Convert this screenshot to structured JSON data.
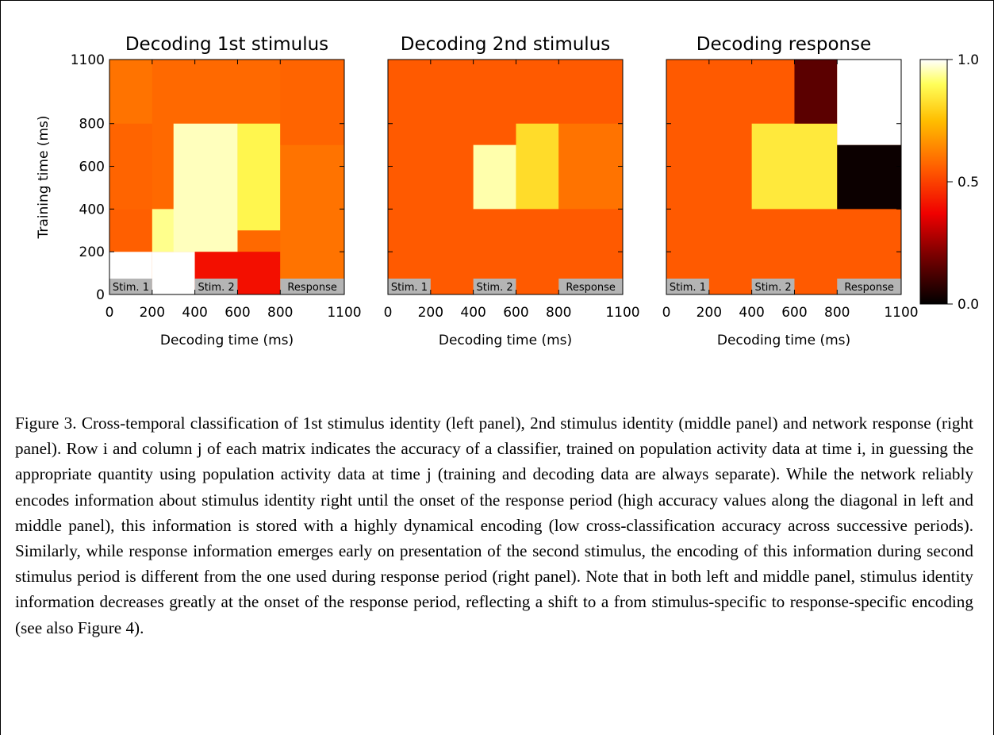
{
  "chart_data": [
    {
      "type": "heatmap",
      "title": "Decoding 1st stimulus",
      "xlabel": "Decoding time (ms)",
      "ylabel": "Training time (ms)",
      "xlim": [
        0,
        1100
      ],
      "ylim": [
        0,
        1100
      ],
      "xticks": [
        "0",
        "200",
        "400",
        "600",
        "800",
        "1100"
      ],
      "yticks": [
        "0",
        "200",
        "400",
        "600",
        "800",
        "1100"
      ],
      "periods": [
        "Stim. 1",
        "Stim. 2",
        "Response"
      ],
      "color_scale": "hot",
      "blocks": [
        {
          "x": [
            0,
            1100
          ],
          "y": [
            0,
            1100
          ],
          "value": 0.58
        },
        {
          "x": [
            0,
            200
          ],
          "y": [
            0,
            200
          ],
          "value": 1.0
        },
        {
          "x": [
            0,
            200
          ],
          "y": [
            200,
            400
          ],
          "value": 0.56
        },
        {
          "x": [
            0,
            200
          ],
          "y": [
            400,
            800
          ],
          "value": 0.57
        },
        {
          "x": [
            0,
            200
          ],
          "y": [
            800,
            1100
          ],
          "value": 0.6
        },
        {
          "x": [
            200,
            400
          ],
          "y": [
            0,
            200
          ],
          "value": 1.0
        },
        {
          "x": [
            200,
            400
          ],
          "y": [
            200,
            400
          ],
          "value": 0.93
        },
        {
          "x": [
            400,
            800
          ],
          "y": [
            0,
            200
          ],
          "value": 0.4
        },
        {
          "x": [
            300,
            600
          ],
          "y": [
            200,
            800
          ],
          "value": 0.96
        },
        {
          "x": [
            600,
            800
          ],
          "y": [
            300,
            800
          ],
          "value": 0.88
        },
        {
          "x": [
            800,
            1100
          ],
          "y": [
            0,
            700
          ],
          "value": 0.6
        },
        {
          "x": [
            800,
            1100
          ],
          "y": [
            700,
            1100
          ],
          "value": 0.57
        }
      ]
    },
    {
      "type": "heatmap",
      "title": "Decoding 2nd stimulus",
      "xlabel": "Decoding time (ms)",
      "xlim": [
        0,
        1100
      ],
      "ylim": [
        0,
        1100
      ],
      "xticks": [
        "0",
        "200",
        "400",
        "600",
        "800",
        "1100"
      ],
      "periods": [
        "Stim. 1",
        "Stim. 2",
        "Response"
      ],
      "color_scale": "hot",
      "blocks": [
        {
          "x": [
            0,
            1100
          ],
          "y": [
            0,
            1100
          ],
          "value": 0.55
        },
        {
          "x": [
            400,
            600
          ],
          "y": [
            400,
            700
          ],
          "value": 0.95
        },
        {
          "x": [
            600,
            800
          ],
          "y": [
            400,
            800
          ],
          "value": 0.82
        },
        {
          "x": [
            800,
            1100
          ],
          "y": [
            400,
            800
          ],
          "value": 0.6
        }
      ]
    },
    {
      "type": "heatmap",
      "title": "Decoding response",
      "xlabel": "Decoding time (ms)",
      "xlim": [
        0,
        1100
      ],
      "ylim": [
        0,
        1100
      ],
      "xticks": [
        "0",
        "200",
        "400",
        "600",
        "800",
        "1100"
      ],
      "periods": [
        "Stim. 1",
        "Stim. 2",
        "Response"
      ],
      "color_scale": "hot",
      "blocks": [
        {
          "x": [
            0,
            1100
          ],
          "y": [
            0,
            1100
          ],
          "value": 0.55
        },
        {
          "x": [
            400,
            800
          ],
          "y": [
            400,
            800
          ],
          "value": 0.85
        },
        {
          "x": [
            600,
            800
          ],
          "y": [
            800,
            1100
          ],
          "value": 0.15
        },
        {
          "x": [
            800,
            1100
          ],
          "y": [
            400,
            700
          ],
          "value": 0.02
        },
        {
          "x": [
            800,
            1100
          ],
          "y": [
            700,
            1100
          ],
          "value": 1.0
        }
      ]
    }
  ],
  "colorbar": {
    "min": 0.0,
    "max": 1.0,
    "ticks": [
      "1.0",
      "0.5",
      "0.0"
    ]
  },
  "caption": "Figure 3. Cross-temporal classification of 1st stimulus identity (left panel), 2nd stimulus identity (middle panel) and network response (right panel). Row i and column j of each matrix indicates the accuracy of a classifier, trained on population activity data at time i, in guessing the appropriate quantity using population activity data at time j (training and decoding data are always separate). While the network reliably encodes information about stimulus identity right until the onset of the response period (high accuracy values along the diagonal in left and middle panel), this information is stored with a highly dynamical encoding (low cross-classification accuracy across successive periods). Similarly, while response information emerges early on presentation of the second stimulus, the encoding of this information during second stimulus period is different from the one used during response period (right panel). Note that in both left and middle panel, stimulus identity information decreases greatly at the onset of the response period, reflecting a shift to a from stimulus-specific to response-specific encoding (see also Figure 4)."
}
